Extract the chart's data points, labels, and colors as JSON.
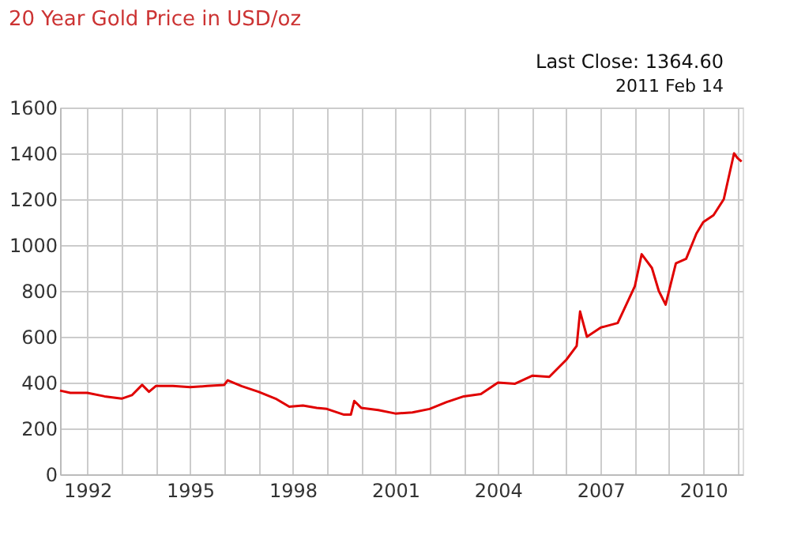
{
  "chart_data": {
    "type": "line",
    "title": "20 Year Gold Price in USD/oz",
    "annotations": [
      "Last Close: 1364.60",
      "2011 Feb 14"
    ],
    "x": [
      1991.2,
      1991.5,
      1992.0,
      1992.5,
      1993.0,
      1993.3,
      1993.6,
      1993.8,
      1994.0,
      1994.5,
      1995.0,
      1995.5,
      1996.0,
      1996.1,
      1996.5,
      1997.0,
      1997.5,
      1997.9,
      1998.3,
      1998.7,
      1999.0,
      1999.5,
      1999.7,
      1999.8,
      2000.0,
      2000.5,
      2001.0,
      2001.5,
      2002.0,
      2002.5,
      2003.0,
      2003.5,
      2004.0,
      2004.5,
      2005.0,
      2005.5,
      2006.0,
      2006.3,
      2006.4,
      2006.6,
      2007.0,
      2007.5,
      2008.0,
      2008.2,
      2008.5,
      2008.7,
      2008.9,
      2009.2,
      2009.5,
      2009.8,
      2010.0,
      2010.3,
      2010.6,
      2010.9,
      2011.0,
      2011.12
    ],
    "series": [
      {
        "color": "#e00000",
        "values": [
          365,
          355,
          355,
          340,
          330,
          345,
          390,
          360,
          385,
          385,
          380,
          385,
          390,
          410,
          385,
          360,
          330,
          295,
          300,
          290,
          285,
          260,
          260,
          320,
          290,
          280,
          265,
          270,
          285,
          315,
          340,
          350,
          400,
          395,
          430,
          425,
          500,
          560,
          710,
          600,
          640,
          660,
          820,
          960,
          900,
          800,
          740,
          920,
          940,
          1050,
          1100,
          1130,
          1200,
          1400,
          1380,
          1364.6
        ]
      }
    ],
    "xlim": [
      1991.2,
      2011.15
    ],
    "xticks": [
      {
        "value": 1992,
        "label": "1992"
      },
      {
        "value": 1993,
        "label": null
      },
      {
        "value": 1994,
        "label": null
      },
      {
        "value": 1995,
        "label": "1995"
      },
      {
        "value": 1996,
        "label": null
      },
      {
        "value": 1997,
        "label": null
      },
      {
        "value": 1998,
        "label": "1998"
      },
      {
        "value": 1999,
        "label": null
      },
      {
        "value": 2000,
        "label": null
      },
      {
        "value": 2001,
        "label": "2001"
      },
      {
        "value": 2002,
        "label": null
      },
      {
        "value": 2003,
        "label": null
      },
      {
        "value": 2004,
        "label": "2004"
      },
      {
        "value": 2005,
        "label": null
      },
      {
        "value": 2006,
        "label": null
      },
      {
        "value": 2007,
        "label": "2007"
      },
      {
        "value": 2008,
        "label": null
      },
      {
        "value": 2009,
        "label": null
      },
      {
        "value": 2010,
        "label": "2010"
      },
      {
        "value": 2011,
        "label": null
      }
    ],
    "ylim": [
      0,
      1600
    ],
    "yticks": [
      0,
      200,
      400,
      600,
      800,
      1000,
      1200,
      1400,
      1600
    ],
    "grid": true,
    "marker": "none",
    "line_style": "solid"
  }
}
